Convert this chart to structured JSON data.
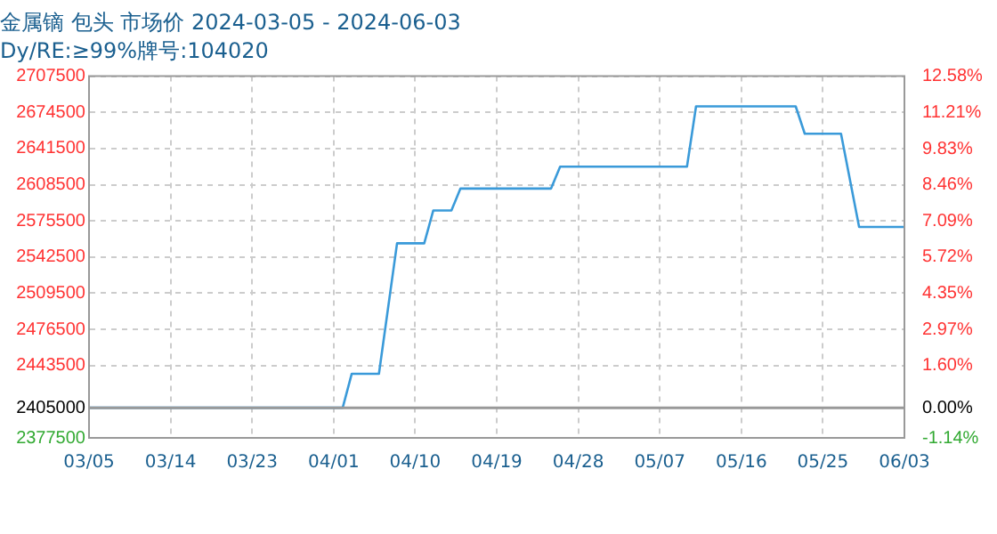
{
  "chart_data": {
    "type": "line",
    "title": "金属镝 包头 市场价 2024-03-05 - 2024-06-03",
    "subtitle": "Dy/RE:≥99%牌号:104020",
    "x": [
      "2024-03-05",
      "2024-04-02",
      "2024-04-03",
      "2024-04-06",
      "2024-04-08",
      "2024-04-11",
      "2024-04-12",
      "2024-04-14",
      "2024-04-15",
      "2024-04-25",
      "2024-04-26",
      "2024-05-10",
      "2024-05-11",
      "2024-05-22",
      "2024-05-23",
      "2024-05-27",
      "2024-05-29",
      "2024-06-03"
    ],
    "series": [
      {
        "color": "#3a9ad9",
        "values": [
          2405000,
          2405000,
          2436000,
          2436000,
          2555000,
          2555000,
          2585000,
          2585000,
          2605000,
          2605000,
          2625000,
          2625000,
          2680000,
          2680000,
          2655000,
          2655000,
          2570000,
          2570000
        ]
      }
    ],
    "xlim": [
      "2024-03-05",
      "2024-06-03"
    ],
    "xticks": [
      {
        "value": "2024-03-05",
        "label": "03/05"
      },
      {
        "value": "2024-03-14",
        "label": "03/14"
      },
      {
        "value": "2024-03-23",
        "label": "03/23"
      },
      {
        "value": "2024-04-01",
        "label": "04/01"
      },
      {
        "value": "2024-04-10",
        "label": "04/10"
      },
      {
        "value": "2024-04-19",
        "label": "04/19"
      },
      {
        "value": "2024-04-28",
        "label": "04/28"
      },
      {
        "value": "2024-05-07",
        "label": "05/07"
      },
      {
        "value": "2024-05-16",
        "label": "05/16"
      },
      {
        "value": "2024-05-25",
        "label": "05/25"
      },
      {
        "value": "2024-06-03",
        "label": "06/03"
      }
    ],
    "ylim": [
      2377500,
      2707500
    ],
    "yticks": [
      2377500,
      2405000,
      2443500,
      2476500,
      2509500,
      2542500,
      2575500,
      2608500,
      2641500,
      2674500,
      2707500
    ],
    "y2lim": [
      -1.14,
      12.58
    ],
    "y2ticks": [
      {
        "value": -1.14,
        "label": "-1.14%"
      },
      {
        "value": 0,
        "label": "0.00%"
      },
      {
        "value": 1.6,
        "label": "1.60%"
      },
      {
        "value": 2.97,
        "label": "2.97%"
      },
      {
        "value": 4.35,
        "label": "4.35%"
      },
      {
        "value": 5.72,
        "label": "5.72%"
      },
      {
        "value": 7.09,
        "label": "7.09%"
      },
      {
        "value": 8.46,
        "label": "8.46%"
      },
      {
        "value": 9.83,
        "label": "9.83%"
      },
      {
        "value": 11.21,
        "label": "11.21%"
      },
      {
        "value": 12.58,
        "label": "12.58%"
      }
    ],
    "ref_lines": [
      {
        "axis": "y",
        "value": 2405000,
        "color": "#999999"
      }
    ],
    "grid": true,
    "legend": false,
    "marker": "none",
    "line_style": "solid"
  }
}
